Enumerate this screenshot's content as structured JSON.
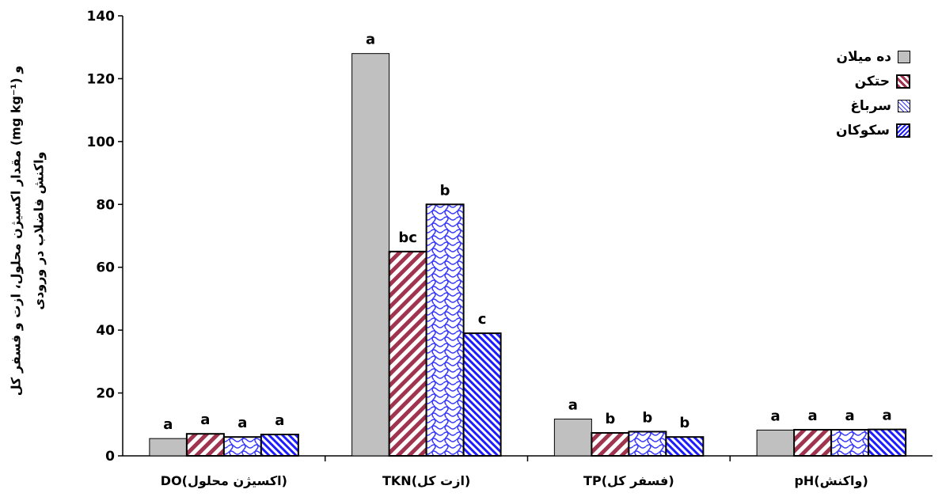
{
  "chart_data": {
    "type": "bar",
    "categories": [
      "DO(اکسیژن محلول)",
      "TKN(ازت کل)",
      "TP(فسفر کل)",
      "pH(واکنش)"
    ],
    "series": [
      {
        "name": "ده میلان",
        "values": [
          5.5,
          128,
          11.7,
          8.2
        ],
        "letters": [
          "a",
          "a",
          "a",
          "a"
        ]
      },
      {
        "name": "حتکن",
        "values": [
          7,
          65,
          7.3,
          8.3
        ],
        "letters": [
          "a",
          "bc",
          "b",
          "a"
        ]
      },
      {
        "name": "سرباغ",
        "values": [
          6,
          80,
          7.7,
          8.3
        ],
        "letters": [
          "a",
          "b",
          "b",
          "a"
        ]
      },
      {
        "name": "سکوکان",
        "values": [
          6.8,
          39,
          6,
          8.4
        ],
        "letters": [
          "a",
          "c",
          "b",
          "a"
        ]
      }
    ],
    "ylim": [
      0,
      140
    ],
    "yticks": [
      "0",
      "20",
      "40",
      "60",
      "80",
      "100",
      "120",
      "140"
    ],
    "ylabel_line1": "مقدار اکسیژن محلول، ازت و فسفر کل (mg kg⁻¹) و",
    "ylabel_line2": "واکنش فاضلاب در ورودی",
    "legend_position": "top-right",
    "grid": false,
    "colors": {
      "gray": "#c0c0c0",
      "red": "#a0344f",
      "blue": "#2a2aff",
      "border": "#000000"
    }
  }
}
